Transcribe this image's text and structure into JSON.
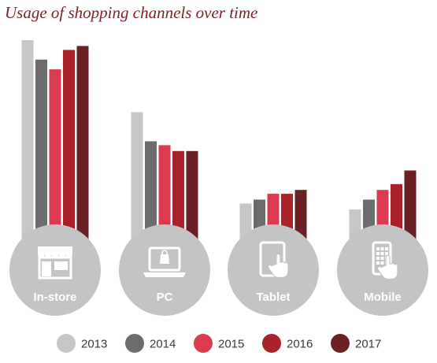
{
  "chart_data": {
    "type": "bar",
    "title": "Usage of shopping channels over time",
    "categories": [
      "In-store",
      "PC",
      "Tablet",
      "Mobile"
    ],
    "series": [
      {
        "name": "2013",
        "color": "#c7c7c7",
        "values": [
          100,
          63,
          16,
          13
        ]
      },
      {
        "name": "2014",
        "color": "#6c6c6e",
        "values": [
          90,
          48,
          18,
          18
        ]
      },
      {
        "name": "2015",
        "color": "#dc3a4f",
        "values": [
          85,
          46,
          21,
          23
        ]
      },
      {
        "name": "2016",
        "color": "#a92129",
        "values": [
          95,
          43,
          21,
          26
        ]
      },
      {
        "name": "2017",
        "color": "#6b2024",
        "values": [
          97,
          43,
          23,
          33
        ]
      }
    ],
    "icons": [
      "storefront-icon",
      "laptop-icon",
      "tablet-touch-icon",
      "mobile-touch-icon"
    ],
    "circle_color": "#c4c4c4",
    "legend_position": "bottom",
    "grid": false
  }
}
